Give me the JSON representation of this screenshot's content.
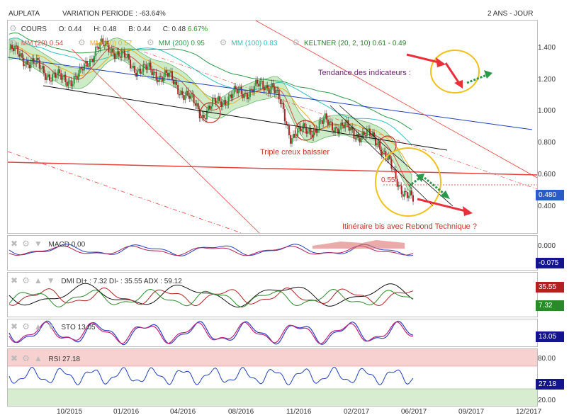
{
  "header": {
    "symbol": "AUPLATA",
    "variation": "VARIATION PERIODE : -63.64%",
    "period": "2 ANS - JOUR"
  },
  "legend": {
    "cours": "COURS",
    "open": "O: 0.44",
    "high": "H: 0.48",
    "low": "B: 0.44",
    "close": "C: 0.48",
    "change": "6.67%",
    "mm20": "MM (20) 0.54",
    "mm50": "MM (50) 0.57",
    "mm200": "MM (200) 0.95",
    "mm100": "MM (100) 0.83",
    "keltner": "KELTNER (20, 2, 10) 0.61 - 0.49"
  },
  "annotations": {
    "tendance": "Tendance des indicateurs :",
    "triple": "Triple creux baissier",
    "itineraire": "Itinéraire bis avec Rebond Technique ?",
    "level": "0.55"
  },
  "price_axis": [
    "1.400",
    "1.200",
    "1.000",
    "0.800",
    "0.600",
    "0.400"
  ],
  "price_badge": "0.480",
  "panels": {
    "macd": {
      "label": "MACD 0.00",
      "axis": "0.000",
      "badge": "-0.075"
    },
    "dmi": {
      "label": "DMI DI+ : 7.32  DI- : 35.55  ADX : 59.12",
      "badge_red": "35.55",
      "badge_green": "7.32"
    },
    "sto": {
      "label": "STO 13.05",
      "badge": "13.05"
    },
    "rsi": {
      "label": "RSI 27.18",
      "axis_top": "80.00",
      "axis_bottom": "20.00",
      "badge": "27.18"
    }
  },
  "x_axis": [
    "10/2015",
    "01/2016",
    "04/2016",
    "08/2016",
    "11/2016",
    "02/2017",
    "06/2017",
    "09/2017",
    "12/2017"
  ],
  "colors": {
    "candle_up": "#2e9a3a",
    "candle_down": "#b22222",
    "mm200": "#2c9a4a",
    "mm100": "#2bc3c3",
    "keltner_fill": "#b9e3b0",
    "trend_blue": "#1f3fbf",
    "trend_red": "#e8403a",
    "circle_red": "#c0392b",
    "circle_yellow": "#f2c01a",
    "badge_blue": "#2a5cc9",
    "badge_navy": "#14148c",
    "badge_red": "#b22222",
    "badge_green": "#2a8a2a",
    "rsi_overbought": "#f7d0d0",
    "rsi_oversold": "#d8ecd0"
  },
  "chart_data": {
    "type": "line",
    "title": "AUPLATA",
    "x": [
      "2015-07",
      "2015-08",
      "2015-09",
      "2015-10",
      "2015-11",
      "2015-12",
      "2016-01",
      "2016-02",
      "2016-03",
      "2016-04",
      "2016-05",
      "2016-06",
      "2016-07",
      "2016-08",
      "2016-09",
      "2016-10",
      "2016-11",
      "2016-12",
      "2017-01",
      "2017-02",
      "2017-03",
      "2017-04",
      "2017-05",
      "2017-06"
    ],
    "series": [
      {
        "name": "COURS",
        "values": [
          1.38,
          1.32,
          1.25,
          1.2,
          1.22,
          1.4,
          1.38,
          1.28,
          1.25,
          1.22,
          1.12,
          1.0,
          1.08,
          1.12,
          1.15,
          1.18,
          0.88,
          0.9,
          0.95,
          0.92,
          0.88,
          0.85,
          0.62,
          0.48
        ]
      }
    ],
    "ylim": [
      0.3,
      1.55
    ],
    "axis_ticks": [
      1.4,
      1.2,
      1.0,
      0.8,
      0.6,
      0.4
    ],
    "last_close": 0.48
  }
}
